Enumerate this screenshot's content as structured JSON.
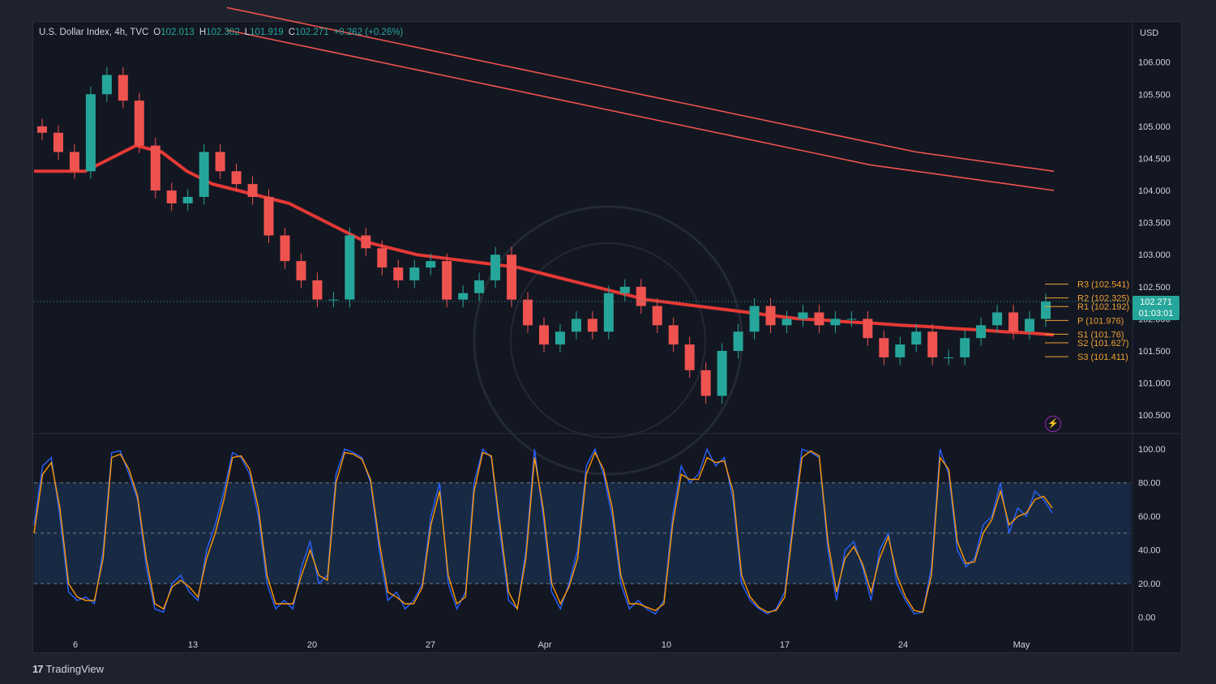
{
  "legend": {
    "symbol": "U.S. Dollar Index, 4h, TVC",
    "o_label": "O",
    "o_value": "102.013",
    "h_label": "H",
    "h_value": "102.302",
    "l_label": "L",
    "l_value": "101.919",
    "c_label": "C",
    "c_value": "102.271",
    "change": "+0.262 (+0.26%)"
  },
  "currency": "USD",
  "last_price": {
    "value": "102.271",
    "countdown": "01:03:01"
  },
  "brand": "TradingView",
  "colors": {
    "up": "#26a69a",
    "down": "#ef5350",
    "ema_red": "#e53935",
    "ema_green": "#00e676",
    "stoch_k": "#2962ff",
    "stoch_d": "#ff9800",
    "pivot": "#f0a030",
    "band": "#1e3a5f"
  },
  "chart_data": [
    {
      "type": "line",
      "title": "U.S. Dollar Index, 4h, TVC",
      "x_ticks": [
        "6",
        "13",
        "20",
        "27",
        "Apr",
        "10",
        "17",
        "24",
        "May"
      ],
      "y_ticks": [
        "106.000",
        "105.500",
        "105.000",
        "104.500",
        "104.000",
        "103.500",
        "103.000",
        "102.500",
        "102.000",
        "101.500",
        "101.000",
        "100.500"
      ],
      "ylim": [
        100.25,
        106.4
      ],
      "series": [
        {
          "values": [
            104.9,
            104.6,
            104.3,
            105.5,
            105.8,
            105.4,
            104.7,
            104.0,
            103.8,
            103.9,
            104.6,
            104.3,
            104.1,
            103.9,
            103.3,
            102.9,
            102.6,
            102.3,
            102.3,
            103.3,
            103.1,
            102.8,
            102.6,
            102.8,
            102.9,
            102.3,
            102.4,
            102.6,
            103.0,
            102.3,
            101.9,
            101.6,
            101.8,
            102.0,
            101.8,
            102.4,
            102.5,
            102.2,
            101.9,
            101.6,
            101.2,
            100.8,
            101.5,
            101.8,
            102.2,
            101.9,
            102.0,
            102.1,
            101.9,
            102.0,
            102.0,
            101.7,
            101.4,
            101.6,
            101.8,
            101.4,
            101.4,
            101.7,
            101.9,
            102.1,
            101.8,
            102.0,
            102.27
          ]
        }
      ],
      "overlays": [
        {
          "values": [
            104.3,
            104.3,
            104.3,
            104.5,
            104.7,
            104.6,
            104.3,
            104.1,
            104.0,
            103.9,
            103.8,
            103.6,
            103.4,
            103.2,
            103.1,
            103.0,
            102.95,
            102.9,
            102.85,
            102.8,
            102.7,
            102.6,
            102.5,
            102.4,
            102.3,
            102.25,
            102.2,
            102.15,
            102.1,
            102.05,
            102.0,
            101.98,
            101.95,
            101.93,
            101.9,
            101.88,
            101.85,
            101.83,
            101.8,
            101.78,
            101.75
          ]
        },
        {
          "values": [
            106.85,
            106.7,
            106.55,
            106.4,
            106.25,
            106.1,
            105.95,
            105.8,
            105.65,
            105.5,
            105.35,
            105.2,
            105.05,
            104.9,
            104.75,
            104.6,
            104.5,
            104.4,
            104.3
          ]
        },
        {
          "values": [
            106.5,
            106.35,
            106.2,
            106.05,
            105.9,
            105.75,
            105.6,
            105.45,
            105.3,
            105.15,
            105.0,
            104.85,
            104.7,
            104.55,
            104.4,
            104.3,
            104.2,
            104.1,
            104.0
          ]
        }
      ],
      "pivots": [
        {
          "label": "R3 (102.541)",
          "value": 102.541
        },
        {
          "label": "R2 (102.325)",
          "value": 102.325
        },
        {
          "label": "R1 (102.192)",
          "value": 102.192
        },
        {
          "label": "P (101.976)",
          "value": 101.976
        },
        {
          "label": "S1 (101.76)",
          "value": 101.76
        },
        {
          "label": "S2 (101.627)",
          "value": 101.627
        },
        {
          "label": "S3 (101.411)",
          "value": 101.411
        }
      ]
    },
    {
      "type": "line",
      "y_ticks": [
        "100.00",
        "80.00",
        "60.00",
        "40.00",
        "20.00",
        "0.00"
      ],
      "ylim": [
        -5,
        103
      ],
      "band": [
        20,
        80
      ],
      "series": [
        {
          "values": [
            55,
            90,
            95,
            60,
            15,
            10,
            12,
            8,
            40,
            98,
            99,
            85,
            70,
            30,
            5,
            3,
            20,
            25,
            15,
            10,
            40,
            55,
            75,
            98,
            95,
            85,
            60,
            20,
            5,
            10,
            5,
            30,
            45,
            20,
            25,
            85,
            100,
            98,
            95,
            80,
            40,
            10,
            15,
            5,
            10,
            20,
            60,
            80,
            20,
            5,
            15,
            80,
            100,
            95,
            50,
            10,
            5,
            40,
            100,
            60,
            15,
            5,
            20,
            40,
            90,
            100,
            85,
            60,
            20,
            5,
            10,
            5,
            2,
            10,
            60,
            90,
            80,
            85,
            100,
            90,
            95,
            70,
            20,
            10,
            5,
            2,
            5,
            15,
            60,
            100,
            98,
            95,
            40,
            10,
            40,
            45,
            30,
            10,
            40,
            50,
            20,
            10,
            2,
            3,
            30,
            100,
            85,
            40,
            30,
            35,
            55,
            60,
            80,
            50,
            65,
            60,
            75,
            70,
            62
          ]
        },
        {
          "values": [
            50,
            85,
            92,
            65,
            20,
            12,
            10,
            10,
            35,
            95,
            97,
            88,
            72,
            35,
            8,
            5,
            18,
            22,
            18,
            12,
            35,
            50,
            70,
            95,
            96,
            88,
            65,
            25,
            8,
            8,
            8,
            25,
            40,
            25,
            22,
            80,
            98,
            97,
            94,
            82,
            45,
            15,
            12,
            8,
            8,
            18,
            55,
            75,
            25,
            8,
            12,
            75,
            98,
            96,
            55,
            15,
            5,
            35,
            95,
            65,
            20,
            8,
            18,
            35,
            85,
            98,
            88,
            65,
            25,
            8,
            8,
            6,
            4,
            8,
            55,
            85,
            82,
            82,
            95,
            92,
            93,
            75,
            25,
            12,
            6,
            3,
            4,
            12,
            55,
            95,
            99,
            96,
            45,
            15,
            35,
            42,
            32,
            15,
            35,
            48,
            25,
            12,
            4,
            3,
            25,
            95,
            88,
            45,
            32,
            33,
            50,
            58,
            75,
            55,
            60,
            62,
            70,
            72,
            65
          ]
        }
      ]
    }
  ]
}
